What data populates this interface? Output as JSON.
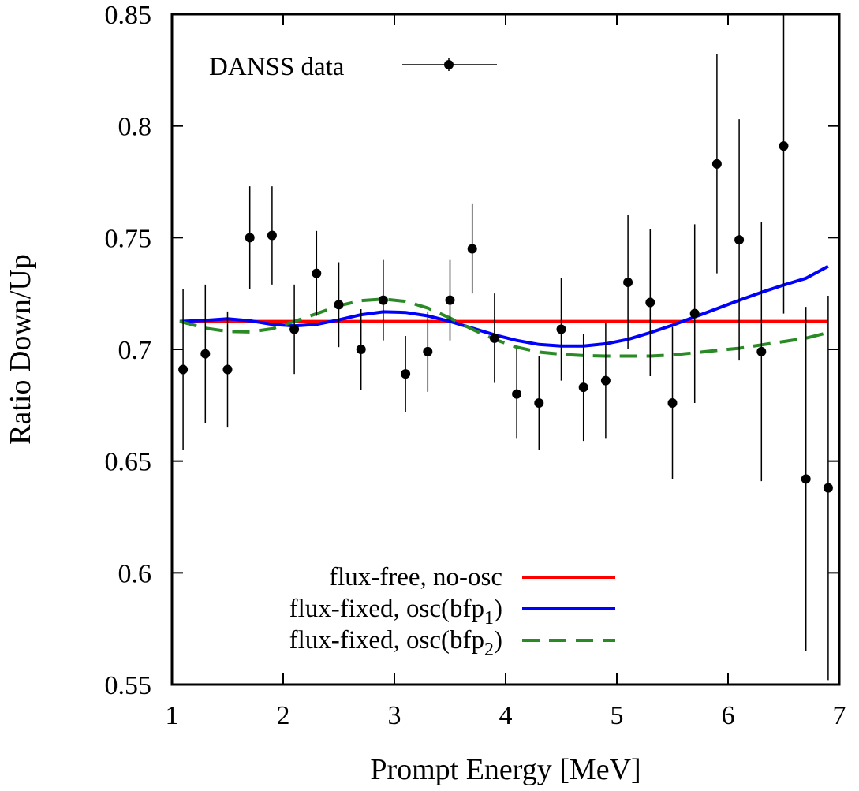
{
  "chart_data": {
    "type": "scatter",
    "title": "",
    "xlabel": "Prompt Energy [MeV]",
    "ylabel": "Ratio Down/Up",
    "xlim": [
      1,
      7
    ],
    "ylim": [
      0.55,
      0.85
    ],
    "xticks": [
      1,
      2,
      3,
      4,
      5,
      6,
      7
    ],
    "xtick_labels": [
      "1",
      "2",
      "3",
      "4",
      "5",
      "6",
      "7"
    ],
    "yticks": [
      0.55,
      0.6,
      0.65,
      0.7,
      0.75,
      0.8,
      0.85
    ],
    "ytick_labels": [
      "0.55",
      "0.6",
      "0.65",
      "0.7",
      "0.75",
      "0.8",
      "0.85"
    ],
    "grid": false,
    "legend_top": {
      "position": "top-left",
      "label": "DANSS data"
    },
    "legend_bottom": {
      "position": "bottom-right",
      "entries": [
        {
          "base": "flux-free, no-osc",
          "sub": "",
          "tail": ""
        },
        {
          "base": "flux-fixed, osc(bfp",
          "sub": "1",
          "tail": ")"
        },
        {
          "base": "flux-fixed, osc(bfp",
          "sub": "2",
          "tail": ")"
        }
      ]
    },
    "points": {
      "name": "DANSS data",
      "color": "#000000",
      "x": [
        1.1,
        1.3,
        1.5,
        1.7,
        1.9,
        2.1,
        2.3,
        2.5,
        2.7,
        2.9,
        3.1,
        3.3,
        3.5,
        3.7,
        3.9,
        4.1,
        4.3,
        4.5,
        4.7,
        4.9,
        5.1,
        5.3,
        5.5,
        5.7,
        5.9,
        6.1,
        6.3,
        6.5,
        6.7,
        6.9
      ],
      "y": [
        0.691,
        0.698,
        0.691,
        0.75,
        0.751,
        0.709,
        0.734,
        0.72,
        0.7,
        0.722,
        0.689,
        0.699,
        0.722,
        0.745,
        0.705,
        0.68,
        0.676,
        0.709,
        0.683,
        0.686,
        0.73,
        0.721,
        0.676,
        0.716,
        0.783,
        0.749,
        0.699,
        0.791,
        0.642,
        0.638
      ],
      "err": [
        0.036,
        0.031,
        0.026,
        0.023,
        0.022,
        0.02,
        0.019,
        0.019,
        0.018,
        0.018,
        0.017,
        0.018,
        0.018,
        0.02,
        0.02,
        0.02,
        0.021,
        0.023,
        0.024,
        0.026,
        0.03,
        0.033,
        0.034,
        0.04,
        0.049,
        0.054,
        0.058,
        0.075,
        0.077,
        0.086
      ]
    },
    "series": [
      {
        "name": "flux-free, no-osc",
        "color": "#ff0000",
        "style": "solid",
        "x": [
          1.07,
          6.9
        ],
        "y": [
          0.7125,
          0.7125
        ]
      },
      {
        "name": "flux-fixed, osc(bfp1)",
        "color": "#0000ff",
        "style": "solid",
        "x": [
          1.07,
          1.3,
          1.5,
          1.7,
          1.9,
          2.1,
          2.3,
          2.5,
          2.7,
          2.9,
          3.1,
          3.3,
          3.5,
          3.7,
          3.9,
          4.1,
          4.3,
          4.5,
          4.7,
          4.9,
          5.1,
          5.3,
          5.5,
          5.7,
          5.9,
          6.1,
          6.3,
          6.5,
          6.7,
          6.9
        ],
        "y": [
          0.7125,
          0.713,
          0.7137,
          0.7128,
          0.7112,
          0.7105,
          0.7112,
          0.7132,
          0.7155,
          0.7168,
          0.7165,
          0.715,
          0.7125,
          0.7095,
          0.7065,
          0.704,
          0.7022,
          0.7015,
          0.7015,
          0.7025,
          0.7045,
          0.7075,
          0.7108,
          0.7145,
          0.7182,
          0.722,
          0.7255,
          0.7288,
          0.7318,
          0.7372
        ]
      },
      {
        "name": "flux-fixed, osc(bfp2)",
        "color": "#2a8a26",
        "style": "dashed",
        "x": [
          1.07,
          1.3,
          1.5,
          1.7,
          1.9,
          2.1,
          2.3,
          2.5,
          2.7,
          2.9,
          3.1,
          3.3,
          3.5,
          3.7,
          3.9,
          4.1,
          4.3,
          4.5,
          4.7,
          4.9,
          5.1,
          5.3,
          5.5,
          5.7,
          5.9,
          6.1,
          6.3,
          6.5,
          6.7,
          6.9
        ],
        "y": [
          0.7125,
          0.7095,
          0.708,
          0.7078,
          0.7092,
          0.7125,
          0.716,
          0.7195,
          0.7218,
          0.7225,
          0.7215,
          0.7185,
          0.714,
          0.709,
          0.7045,
          0.701,
          0.6988,
          0.6978,
          0.6972,
          0.697,
          0.697,
          0.697,
          0.6975,
          0.6985,
          0.6995,
          0.7005,
          0.702,
          0.7035,
          0.705,
          0.7075
        ]
      }
    ]
  }
}
